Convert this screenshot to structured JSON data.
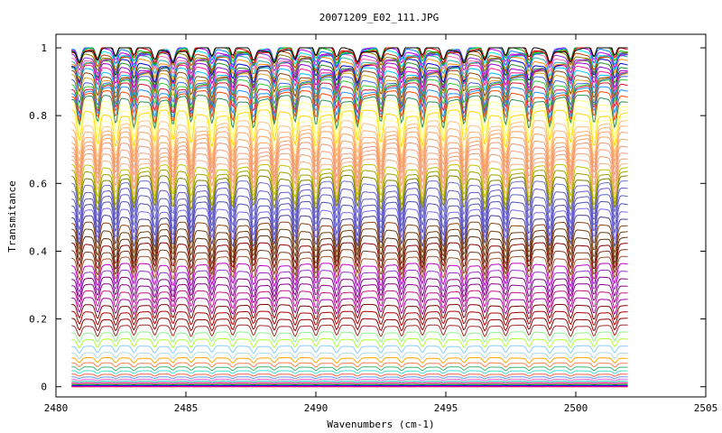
{
  "chart_data": {
    "type": "line",
    "title": "20071209_E02_111.JPG",
    "xlabel": "Wavenumbers (cm-1)",
    "ylabel": "Transmitance",
    "xlim": [
      2480,
      2505
    ],
    "ylim": [
      -0.03,
      1.04
    ],
    "x_data_range": [
      2480.6,
      2502.0
    ],
    "x_ticks": [
      "2480",
      "2485",
      "2490",
      "2495",
      "2500",
      "2505"
    ],
    "y_ticks": [
      "0",
      "0.2",
      "0.4",
      "0.6",
      "0.8",
      "1"
    ],
    "x_tick_values": [
      2480,
      2485,
      2490,
      2495,
      2500,
      2505
    ],
    "y_tick_values": [
      0,
      0.2,
      0.4,
      0.6,
      0.8,
      1.0
    ],
    "grid": false,
    "legend": "none",
    "line_positions": [
      2480.9,
      2481.6,
      2482.3,
      2483.0,
      2483.8,
      2484.5,
      2485.2,
      2486.0,
      2486.8,
      2487.6,
      2488.4,
      2489.2,
      2490.0,
      2490.8,
      2491.6,
      2492.5,
      2493.3,
      2494.1,
      2494.9,
      2495.7,
      2496.5,
      2497.3,
      2498.2,
      2499.0,
      2499.8,
      2500.7,
      2501.5
    ],
    "series_baselines": [
      1.0,
      0.998,
      0.996,
      0.993,
      0.99,
      0.987,
      0.984,
      0.98,
      0.976,
      0.972,
      0.967,
      0.962,
      0.956,
      0.95,
      0.944,
      0.937,
      0.93,
      0.922,
      0.914,
      0.905,
      0.896,
      0.886,
      0.875,
      0.863,
      0.85,
      0.836,
      0.822,
      0.807,
      0.792,
      0.776,
      0.76,
      0.744,
      0.728,
      0.712,
      0.696,
      0.68,
      0.664,
      0.648,
      0.632,
      0.616,
      0.6,
      0.58,
      0.56,
      0.54,
      0.52,
      0.5,
      0.48,
      0.46,
      0.44,
      0.42,
      0.4,
      0.38,
      0.36,
      0.34,
      0.32,
      0.3,
      0.28,
      0.26,
      0.24,
      0.22,
      0.2,
      0.18,
      0.16,
      0.14,
      0.12,
      0.1,
      0.085,
      0.07,
      0.058,
      0.047,
      0.037,
      0.029,
      0.022,
      0.016,
      0.011,
      0.007,
      0.004,
      0.002,
      0.0
    ],
    "series_colors": [
      "#000000",
      "#ff0000",
      "#00c000",
      "#0080ff",
      "#c000ff",
      "#00eeee",
      "#c04000",
      "#808000",
      "#8a2be2",
      "#ff69b4",
      "#20b2aa",
      "#ff8c00",
      "#0000cd",
      "#228b22",
      "#9400d3",
      "#ff1493",
      "#00bfff",
      "#8b4513",
      "#daa520",
      "#4169e1",
      "#32cd32",
      "#dc143c",
      "#1e90ff",
      "#ff4500",
      "#2e8b57",
      "#ffff80",
      "#ffff99",
      "#ffd700",
      "#ffffa0",
      "#ffc080",
      "#ffb070",
      "#ffa060",
      "#f4a460",
      "#e9967a",
      "#ffa07a",
      "#e8a070",
      "#ffb080",
      "#c0c000",
      "#a0a000",
      "#808000",
      "#7070d0",
      "#6a5acd",
      "#6060c0",
      "#5050b0",
      "#7b68ee",
      "#483d8b",
      "#8b4513",
      "#704010",
      "#603010",
      "#8b0000",
      "#7a3a1a",
      "#a0522d",
      "#c000c0",
      "#9932cc",
      "#800080",
      "#8b008b",
      "#c71585",
      "#a000a0",
      "#800000",
      "#b00000",
      "#900000",
      "#a52a2a",
      "#90ee90",
      "#adff2f",
      "#87cefa",
      "#add8e6",
      "#ffa500",
      "#ff7f50",
      "#3cb371",
      "#40e0d0",
      "#ff6347",
      "#6495ed",
      "#da70d6",
      "#20b2aa",
      "#ff0080",
      "#00a000",
      "#0000ff",
      "#ff00ff",
      "#c00000"
    ]
  }
}
